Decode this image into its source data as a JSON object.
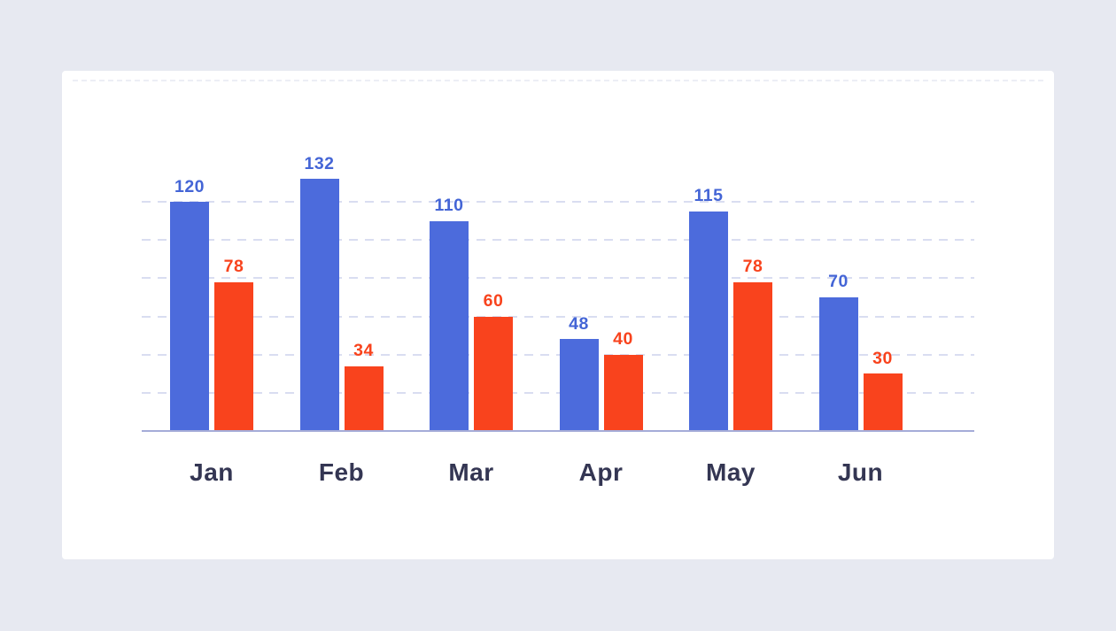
{
  "page": {
    "canvas_background": "#e7e9f1",
    "card_background": "#ffffff"
  },
  "chart_data": {
    "type": "bar",
    "title": "",
    "xlabel": "",
    "ylabel": "",
    "categories": [
      "Jan",
      "Feb",
      "Mar",
      "Apr",
      "May",
      "Jun"
    ],
    "series": [
      {
        "name": "blue-series",
        "color": "#4c6bdc",
        "label_color": "#4465d6",
        "values": [
          120,
          132,
          110,
          48,
          115,
          70
        ]
      },
      {
        "name": "orange-series",
        "color": "#f9431d",
        "label_color": "#f8431d",
        "values": [
          78,
          34,
          60,
          40,
          78,
          30
        ]
      }
    ],
    "ylim": [
      0,
      140
    ],
    "y_gridlines": [
      20,
      40,
      60,
      80,
      100,
      120
    ],
    "grid": "dashed-horizontal",
    "legend_position": "none",
    "value_labels": "above-bars",
    "gridline_color": "#d9ddf1",
    "axis_line_color": "#a5acd8",
    "category_label_color": "#343653"
  }
}
